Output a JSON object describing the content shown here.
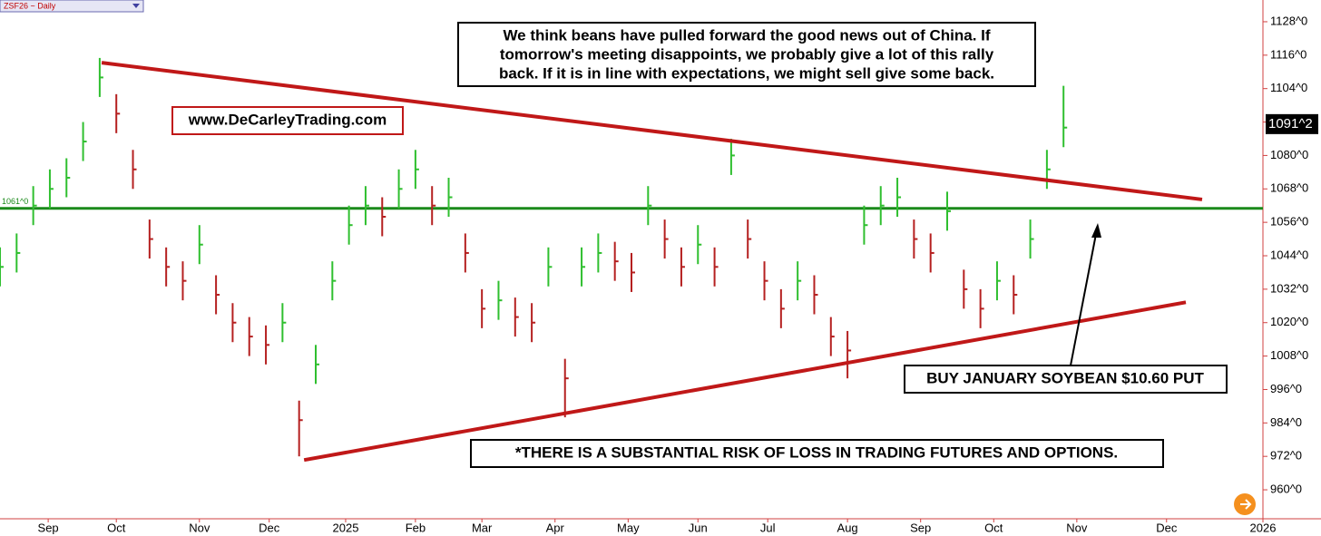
{
  "chart_data": {
    "type": "ohlc",
    "symbol_label": "ZSF26 ~ Daily",
    "x": [
      0,
      5,
      10,
      15,
      20,
      25,
      30,
      35,
      40,
      45,
      50,
      55,
      60,
      65,
      70,
      75,
      80,
      85,
      90,
      95,
      100,
      105,
      110,
      115,
      120,
      125,
      130,
      135,
      140,
      145,
      150,
      155,
      160,
      165,
      170,
      175,
      180,
      185,
      190,
      195,
      200,
      205,
      210,
      215,
      220,
      225,
      230,
      235,
      240,
      245,
      250,
      255,
      260,
      265,
      270,
      275,
      280,
      285,
      290,
      295,
      300,
      305,
      310,
      315,
      320
    ],
    "high": [
      1047,
      1052,
      1069,
      1075,
      1079,
      1092,
      1115,
      1102,
      1082,
      1057,
      1047,
      1042,
      1055,
      1037,
      1027,
      1022,
      1019,
      1027,
      992,
      1012,
      1042,
      1062,
      1069,
      1065,
      1075,
      1082,
      1069,
      1072,
      1052,
      1032,
      1035,
      1029,
      1027,
      1047,
      1007,
      1047,
      1052,
      1049,
      1045,
      1069,
      1057,
      1047,
      1055,
      1047,
      1086,
      1057,
      1042,
      1032,
      1042,
      1037,
      1022,
      1017,
      1062,
      1069,
      1072,
      1057,
      1052,
      1067,
      1039,
      1032,
      1042,
      1037,
      1057,
      1082,
      1105
    ],
    "low": [
      1033,
      1038,
      1055,
      1061,
      1065,
      1078,
      1101,
      1088,
      1068,
      1043,
      1033,
      1028,
      1041,
      1023,
      1013,
      1008,
      1005,
      1013,
      972,
      998,
      1028,
      1048,
      1055,
      1051,
      1061,
      1068,
      1055,
      1058,
      1038,
      1018,
      1021,
      1015,
      1013,
      1033,
      986,
      1033,
      1038,
      1035,
      1031,
      1055,
      1043,
      1033,
      1041,
      1033,
      1073,
      1043,
      1028,
      1018,
      1028,
      1023,
      1008,
      1000,
      1048,
      1055,
      1058,
      1043,
      1038,
      1053,
      1025,
      1018,
      1028,
      1023,
      1043,
      1068,
      1083
    ],
    "close": [
      1040,
      1045,
      1062,
      1068,
      1072,
      1085,
      1108,
      1095,
      1075,
      1050,
      1040,
      1035,
      1048,
      1030,
      1020,
      1015,
      1012,
      1020,
      985,
      1005,
      1035,
      1055,
      1062,
      1058,
      1068,
      1075,
      1062,
      1065,
      1045,
      1025,
      1028,
      1022,
      1020,
      1040,
      1000,
      1040,
      1045,
      1042,
      1038,
      1062,
      1050,
      1040,
      1048,
      1040,
      1080,
      1050,
      1035,
      1025,
      1035,
      1030,
      1015,
      1010,
      1055,
      1062,
      1065,
      1050,
      1045,
      1060,
      1032,
      1025,
      1035,
      1030,
      1050,
      1075,
      1090
    ],
    "up_color": "#2fbf2f",
    "down_color": "#b52020",
    "xlim": [
      0,
      380
    ],
    "xticks": [
      {
        "value": 14.5,
        "label": "Sep"
      },
      {
        "value": 35,
        "label": "Oct"
      },
      {
        "value": 60,
        "label": "Nov"
      },
      {
        "value": 81,
        "label": "Dec"
      },
      {
        "value": 104,
        "label": "2025"
      },
      {
        "value": 125,
        "label": "Feb"
      },
      {
        "value": 145,
        "label": "Mar"
      },
      {
        "value": 167,
        "label": "Apr"
      },
      {
        "value": 189,
        "label": "May"
      },
      {
        "value": 210,
        "label": "Jun"
      },
      {
        "value": 231,
        "label": "Jul"
      },
      {
        "value": 255,
        "label": "Aug"
      },
      {
        "value": 277,
        "label": "Sep"
      },
      {
        "value": 299,
        "label": "Oct"
      },
      {
        "value": 324,
        "label": "Nov"
      },
      {
        "value": 351,
        "label": "Dec"
      },
      {
        "value": 380,
        "label": "2026"
      }
    ],
    "ylim": [
      949.6,
      1135.8
    ],
    "yticks": [
      {
        "value": 960,
        "label": "960^0"
      },
      {
        "value": 972,
        "label": "972^0"
      },
      {
        "value": 984,
        "label": "984^0"
      },
      {
        "value": 996,
        "label": "996^0"
      },
      {
        "value": 1008,
        "label": "1008^0"
      },
      {
        "value": 1020,
        "label": "1020^0"
      },
      {
        "value": 1032,
        "label": "1032^0"
      },
      {
        "value": 1044,
        "label": "1044^0"
      },
      {
        "value": 1056,
        "label": "1056^0"
      },
      {
        "value": 1068,
        "label": "1068^0"
      },
      {
        "value": 1080,
        "label": "1080^0"
      },
      {
        "value": 1092,
        "label": "1092^0"
      },
      {
        "value": 1104,
        "label": "1104^0"
      },
      {
        "value": 1116,
        "label": "1116^0"
      },
      {
        "value": 1128,
        "label": "1128^0"
      }
    ],
    "grid": false,
    "last_price": {
      "value": 1091.25,
      "label": "1091^2"
    },
    "hline": {
      "value": 1061,
      "label": "1061^0",
      "color": "#1a8a1a"
    },
    "trendlines": [
      {
        "color": "#c01818",
        "x": [
          30.6,
          361.7
        ],
        "y": [
          1113.3,
          1064.2
        ]
      },
      {
        "color": "#c01818",
        "x": [
          91.5,
          356.8
        ],
        "y": [
          970.7,
          1027.3
        ]
      }
    ],
    "annotations": {
      "website": "www.DeCarleyTrading.com",
      "comment": [
        "We think beans have pulled forward the good news out of China. If",
        "tomorrow's meeting disappoints, we probably give a lot of this rally",
        "back. If it is in line with expectations, we might sell give some back."
      ],
      "trade": "BUY JANUARY SOYBEAN $10.60 PUT",
      "disclaimer": "*THERE IS A SUBSTANTIAL RISK OF LOSS IN TRADING FUTURES AND OPTIONS."
    }
  }
}
